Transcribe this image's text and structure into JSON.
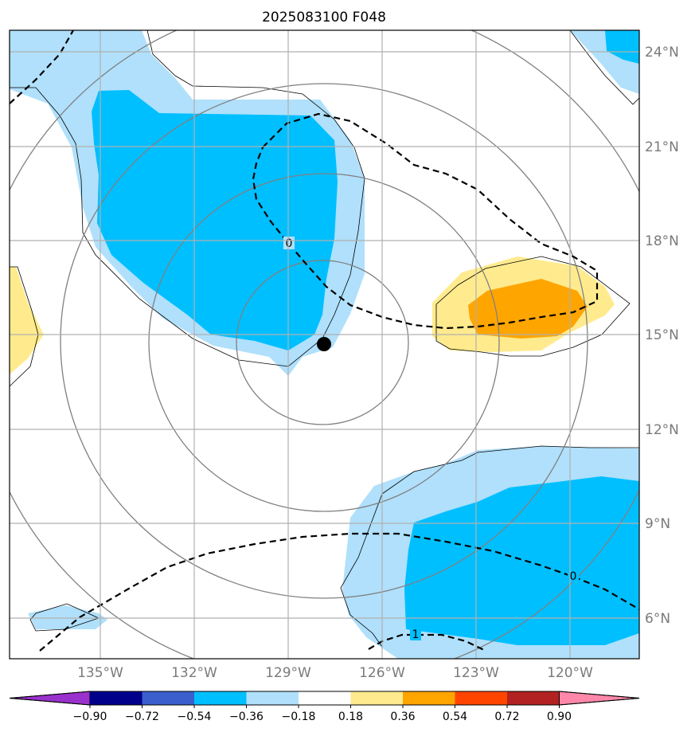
{
  "title": "2025083100 F048",
  "map": {
    "lon_labels": [
      "135°W",
      "132°W",
      "129°W",
      "126°W",
      "123°W",
      "120°W"
    ],
    "lat_labels": [
      "24°N",
      "21°N",
      "18°N",
      "15°N",
      "12°N",
      "9°N",
      "6°N"
    ],
    "contour_labels": [
      "0",
      "0",
      "1"
    ],
    "colors": {
      "neg_light": "#b0e0fb",
      "neg_mid": "#00bfff",
      "pos_light": "#ffeb8e",
      "pos_mid": "#ffa500",
      "grid": "#b0b0b0",
      "rings": "#808080"
    }
  },
  "colorbar": {
    "tick_labels": [
      "−0.90",
      "−0.72",
      "−0.54",
      "−0.36",
      "−0.18",
      "0.18",
      "0.36",
      "0.54",
      "0.72",
      "0.90"
    ],
    "colors": [
      "#9932cc",
      "#00008b",
      "#3a5fcd",
      "#00bfff",
      "#b0e0fb",
      "#ffffff",
      "#ffeb8e",
      "#ffa500",
      "#ff4500",
      "#b22222",
      "#ff88aa"
    ]
  }
}
